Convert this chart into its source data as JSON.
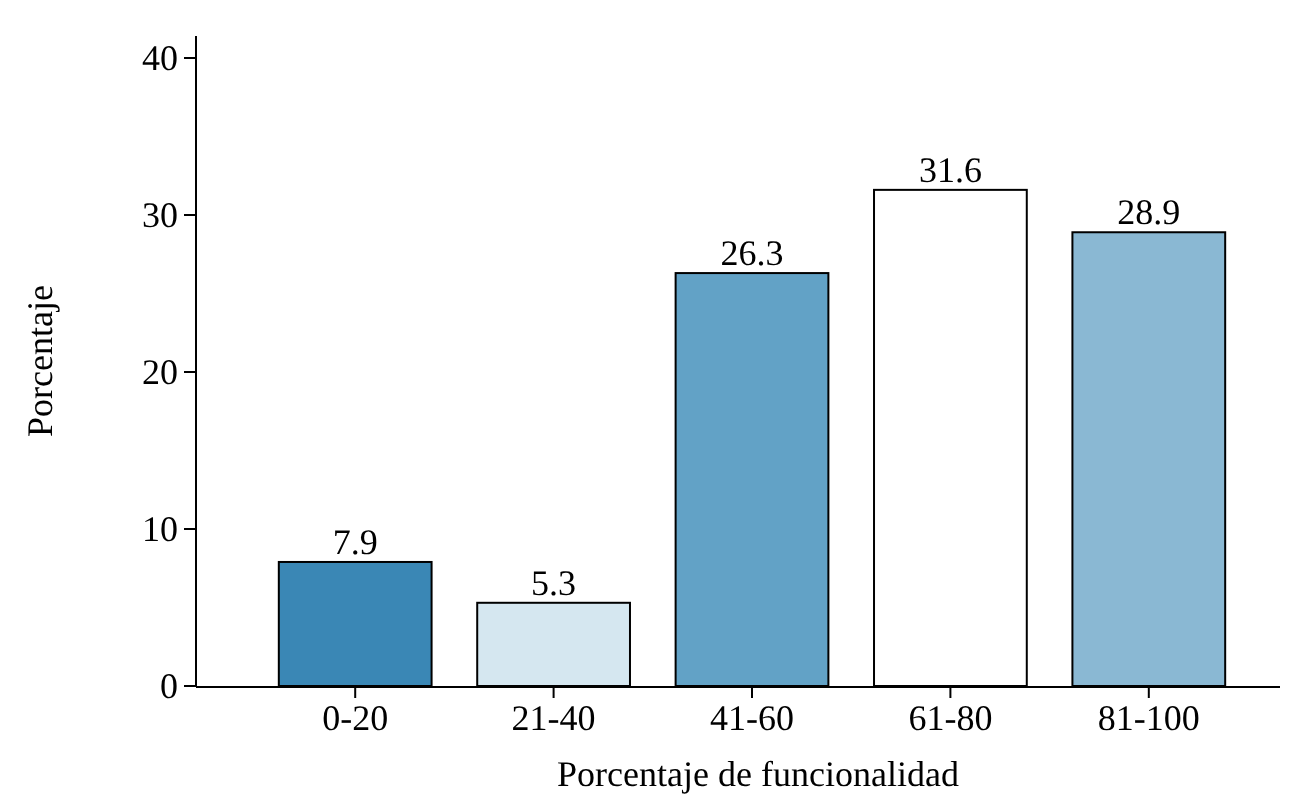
{
  "chart_data": {
    "type": "bar",
    "xlabel": "Porcentaje de funcionalidad",
    "ylabel": "Porcentaje",
    "categories": [
      "0-20",
      "21-40",
      "41-60",
      "61-80",
      "81-100"
    ],
    "values": [
      7.9,
      5.3,
      26.3,
      31.6,
      28.9
    ],
    "colors": [
      "#3a87b5",
      "#d5e7f0",
      "#62a2c6",
      "#ffffff",
      "#8ab8d3"
    ],
    "ylim": [
      0,
      41.4
    ],
    "yticks": [
      0,
      10,
      20,
      30,
      40
    ],
    "data_labels": true
  }
}
